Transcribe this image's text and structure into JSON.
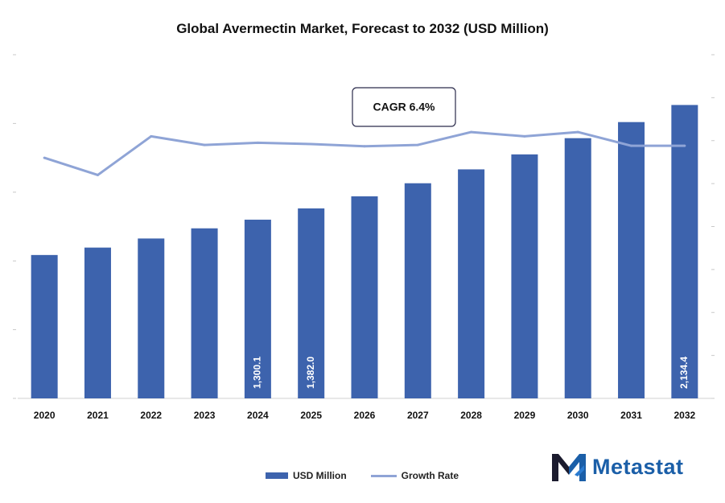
{
  "chart_data": {
    "type": "bar",
    "title": "Global Avermectin Market, Forecast to 2032 (USD Million)",
    "categories": [
      "2020",
      "2021",
      "2022",
      "2023",
      "2024",
      "2025",
      "2026",
      "2027",
      "2028",
      "2029",
      "2030",
      "2031",
      "2032"
    ],
    "series": [
      {
        "name": "USD Million",
        "type": "bar",
        "values": [
          1043,
          1097,
          1163,
          1237,
          1300.1,
          1382.0,
          1470,
          1565,
          1666,
          1775,
          1893,
          2010,
          2134.4
        ],
        "data_labels": [
          "",
          "",
          "",
          "",
          "1,300.1",
          "1,382.0",
          "",
          "",
          "",
          "",
          "",
          "",
          "2,134.4"
        ],
        "color": "#3d63ad"
      },
      {
        "name": "Growth Rate",
        "type": "line",
        "values": [
          5.6,
          5.2,
          6.1,
          5.9,
          5.95,
          5.92,
          5.87,
          5.9,
          6.2,
          6.1,
          6.2,
          5.88,
          5.88
        ],
        "color": "#8fa4d6"
      }
    ],
    "annotation": "CAGR 6.4%",
    "y_left": {
      "min": 0,
      "max": 2500
    },
    "y_right": {
      "min": 0,
      "max": 8
    },
    "legend_position": "bottom-center",
    "grid": false
  },
  "brand": {
    "name": "Metastat",
    "color": "#1b5fa8",
    "icon": "metastat-m-logo"
  }
}
